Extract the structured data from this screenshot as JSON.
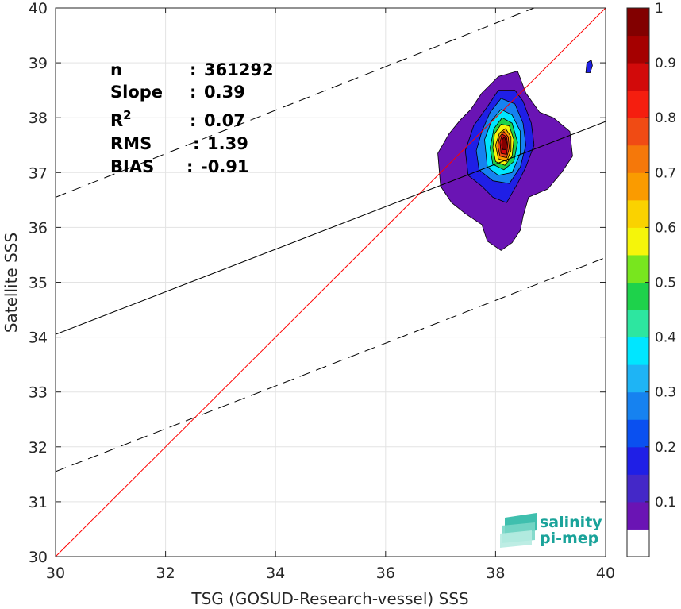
{
  "chart_data": {
    "type": "heatmap",
    "xlabel": "TSG (GOSUD-Research-vessel) SSS",
    "ylabel": "Satellite SSS",
    "xlim": [
      30,
      40
    ],
    "ylim": [
      30,
      40
    ],
    "xticks": [
      "30",
      "32",
      "34",
      "36",
      "38",
      "40"
    ],
    "yticks": [
      "30",
      "31",
      "32",
      "33",
      "34",
      "35",
      "36",
      "37",
      "38",
      "39",
      "40"
    ],
    "grid": true,
    "stats": [
      {
        "label": "n",
        "sep": ":",
        "value": "361292"
      },
      {
        "label": "Slope",
        "sep": ":",
        "value": "0.39"
      },
      {
        "label": "R",
        "sup": "2",
        "sep": ":",
        "value": "0.07"
      },
      {
        "label": "RMS",
        "sep": ":",
        "value": "1.39"
      },
      {
        "label": "BIAS",
        "sep": ":",
        "value": "-0.91"
      }
    ],
    "lines": {
      "identity": {
        "x": [
          30,
          40
        ],
        "y": [
          30,
          40
        ],
        "color": "#ff0000"
      },
      "regression": {
        "x": [
          30,
          40
        ],
        "y": [
          34.05,
          37.93
        ],
        "color": "#000000"
      },
      "bound_upper": {
        "x": [
          30,
          38.7
        ],
        "y": [
          36.55,
          40.0
        ],
        "color": "#000000",
        "dash": true
      },
      "bound_lower": {
        "x": [
          30,
          40
        ],
        "y": [
          31.55,
          35.45
        ],
        "color": "#000000",
        "dash": true
      }
    },
    "density_center": {
      "x": 38.2,
      "y": 37.6
    },
    "density_contours": [
      {
        "level": 0.05,
        "points": [
          [
            37.0,
            36.75
          ],
          [
            37.2,
            36.45
          ],
          [
            37.45,
            36.25
          ],
          [
            37.75,
            36.05
          ],
          [
            37.85,
            35.75
          ],
          [
            38.1,
            35.58
          ],
          [
            38.3,
            35.72
          ],
          [
            38.45,
            35.95
          ],
          [
            38.5,
            36.2
          ],
          [
            38.6,
            36.55
          ],
          [
            38.95,
            36.7
          ],
          [
            39.2,
            37.0
          ],
          [
            39.4,
            37.3
          ],
          [
            39.35,
            37.75
          ],
          [
            39.05,
            38.0
          ],
          [
            38.8,
            38.1
          ],
          [
            38.55,
            38.45
          ],
          [
            38.4,
            38.85
          ],
          [
            38.05,
            38.75
          ],
          [
            37.75,
            38.45
          ],
          [
            37.55,
            38.15
          ],
          [
            37.35,
            37.95
          ],
          [
            37.15,
            37.7
          ],
          [
            36.95,
            37.35
          ]
        ]
      },
      {
        "level": 0.15,
        "points": [
          [
            37.5,
            36.95
          ],
          [
            37.75,
            36.75
          ],
          [
            37.95,
            36.55
          ],
          [
            38.2,
            36.45
          ],
          [
            38.4,
            36.8
          ],
          [
            38.55,
            37.1
          ],
          [
            38.7,
            37.5
          ],
          [
            38.65,
            37.9
          ],
          [
            38.5,
            38.3
          ],
          [
            38.35,
            38.5
          ],
          [
            38.05,
            38.5
          ],
          [
            37.85,
            38.2
          ],
          [
            37.6,
            37.85
          ],
          [
            37.45,
            37.4
          ]
        ]
      },
      {
        "level": 0.25,
        "points": [
          [
            37.7,
            37.05
          ],
          [
            37.95,
            36.85
          ],
          [
            38.25,
            36.8
          ],
          [
            38.45,
            37.1
          ],
          [
            38.55,
            37.5
          ],
          [
            38.5,
            37.9
          ],
          [
            38.35,
            38.25
          ],
          [
            38.1,
            38.35
          ],
          [
            37.9,
            38.1
          ],
          [
            37.75,
            37.75
          ],
          [
            37.65,
            37.4
          ]
        ]
      },
      {
        "level": 0.35,
        "points": [
          [
            37.85,
            37.1
          ],
          [
            38.05,
            36.95
          ],
          [
            38.3,
            37.0
          ],
          [
            38.45,
            37.35
          ],
          [
            38.45,
            37.75
          ],
          [
            38.3,
            38.05
          ],
          [
            38.1,
            38.15
          ],
          [
            37.93,
            37.95
          ],
          [
            37.8,
            37.6
          ]
        ]
      },
      {
        "level": 0.45,
        "points": [
          [
            37.95,
            37.15
          ],
          [
            38.15,
            37.05
          ],
          [
            38.33,
            37.2
          ],
          [
            38.4,
            37.55
          ],
          [
            38.3,
            37.9
          ],
          [
            38.12,
            38.0
          ],
          [
            37.97,
            37.8
          ],
          [
            37.9,
            37.45
          ]
        ]
      },
      {
        "level": 0.55,
        "points": [
          [
            38.0,
            37.2
          ],
          [
            38.17,
            37.13
          ],
          [
            38.3,
            37.3
          ],
          [
            38.33,
            37.6
          ],
          [
            38.25,
            37.85
          ],
          [
            38.1,
            37.88
          ],
          [
            37.98,
            37.7
          ],
          [
            37.95,
            37.45
          ]
        ]
      },
      {
        "level": 0.65,
        "points": [
          [
            38.05,
            37.25
          ],
          [
            38.2,
            37.2
          ],
          [
            38.28,
            37.4
          ],
          [
            38.28,
            37.65
          ],
          [
            38.18,
            37.8
          ],
          [
            38.07,
            37.72
          ],
          [
            38.0,
            37.5
          ]
        ]
      },
      {
        "level": 0.75,
        "points": [
          [
            38.08,
            37.3
          ],
          [
            38.2,
            37.27
          ],
          [
            38.25,
            37.45
          ],
          [
            38.23,
            37.65
          ],
          [
            38.15,
            37.75
          ],
          [
            38.07,
            37.65
          ],
          [
            38.04,
            37.48
          ]
        ]
      },
      {
        "level": 0.85,
        "points": [
          [
            38.1,
            37.35
          ],
          [
            38.2,
            37.33
          ],
          [
            38.22,
            37.5
          ],
          [
            38.2,
            37.65
          ],
          [
            38.12,
            37.7
          ],
          [
            38.08,
            37.55
          ]
        ]
      },
      {
        "level": 0.95,
        "points": [
          [
            38.13,
            37.42
          ],
          [
            38.19,
            37.42
          ],
          [
            38.2,
            37.55
          ],
          [
            38.16,
            37.65
          ],
          [
            38.12,
            37.6
          ],
          [
            38.11,
            37.5
          ]
        ]
      }
    ],
    "outliers": [
      {
        "level": 0.15,
        "points": [
          [
            39.64,
            38.82
          ],
          [
            39.72,
            38.82
          ],
          [
            39.76,
            38.95
          ],
          [
            39.74,
            39.05
          ],
          [
            39.66,
            39.0
          ]
        ]
      }
    ],
    "colorbar": {
      "range": [
        0,
        1
      ],
      "ticks": [
        "0.1",
        "0.2",
        "0.3",
        "0.4",
        "0.5",
        "0.6",
        "0.7",
        "0.8",
        "0.9",
        "1"
      ],
      "colors": [
        "#ffffff",
        "#6a14b4",
        "#4428c8",
        "#1f1fe6",
        "#0a50f0",
        "#1682f0",
        "#1eb4f5",
        "#00e6ff",
        "#2de6a0",
        "#1ed24b",
        "#78e61e",
        "#f5f50a",
        "#fad200",
        "#fa9b00",
        "#f5780a",
        "#f04b14",
        "#f51e0f",
        "#d20a0a",
        "#a50000",
        "#820000"
      ]
    },
    "logo": {
      "line1": "salinity",
      "line2": "pi-mep"
    }
  }
}
